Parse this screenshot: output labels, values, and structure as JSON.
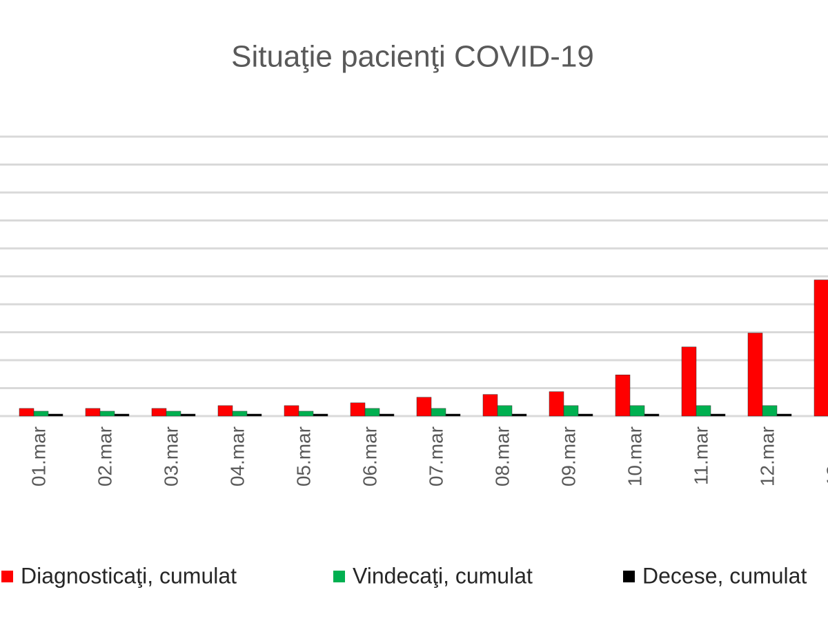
{
  "chart_data": {
    "type": "bar",
    "title": "Situaţie pacienţi COVID-19",
    "categories": [
      "01.mar",
      "02.mar",
      "03.mar",
      "04.mar",
      "05.mar",
      "06.mar",
      "07.mar",
      "08.mar",
      "09.mar",
      "10.mar",
      "11.mar",
      "12.mar",
      "13.mar"
    ],
    "series": [
      {
        "name": "Diagnosticaţi, cumulat",
        "color": "#ff0000",
        "values": [
          2,
          2,
          2,
          3,
          3,
          4,
          6,
          7,
          8,
          14,
          24,
          29,
          48
        ]
      },
      {
        "name": "Vindecaţi, cumulat",
        "color": "#00b050",
        "values": [
          1,
          1,
          1,
          1,
          1,
          2,
          2,
          3,
          3,
          3,
          3,
          3,
          3
        ]
      },
      {
        "name": "Decese, cumulat",
        "color": "#000000",
        "values": [
          0,
          0,
          0,
          0,
          0,
          0,
          0,
          0,
          0,
          0,
          0,
          0,
          0
        ]
      }
    ],
    "ylim": [
      0,
      100
    ],
    "yticks": [
      0,
      10,
      20,
      30,
      40,
      50,
      60,
      70,
      80,
      90,
      100
    ],
    "grid": true
  }
}
